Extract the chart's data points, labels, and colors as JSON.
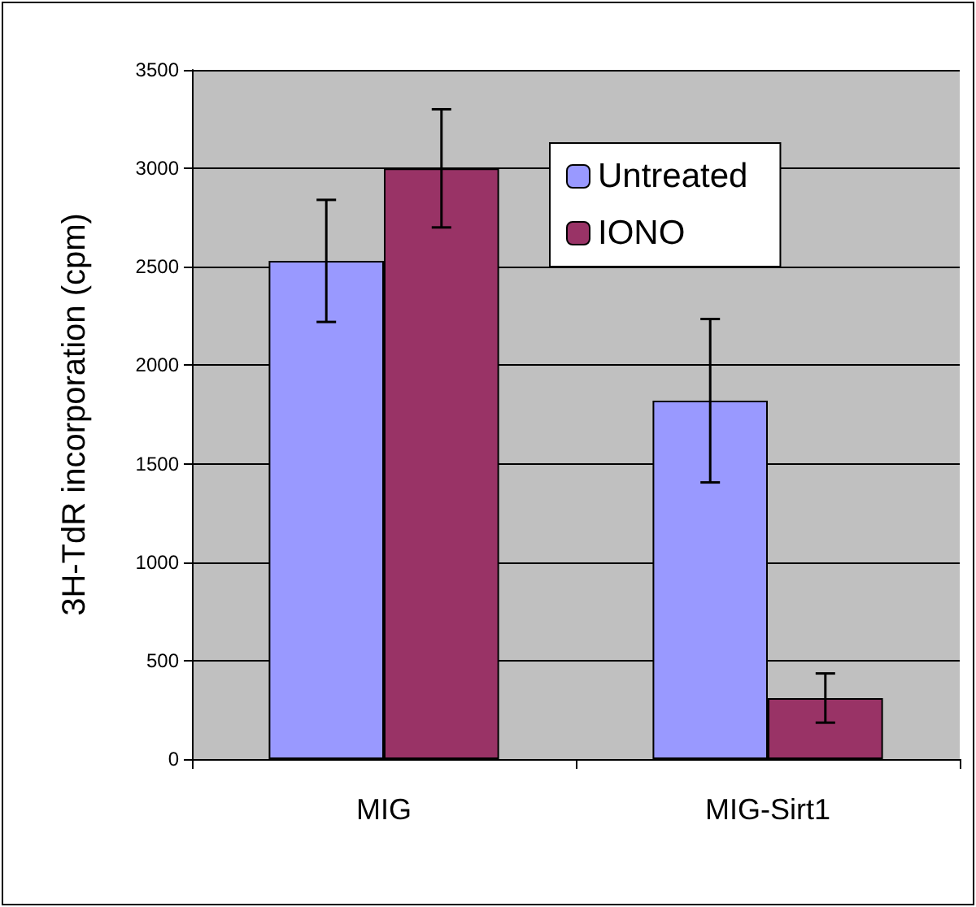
{
  "chart_data": {
    "type": "bar",
    "ylabel": "3H-TdR incorporation (cpm)",
    "categories": [
      "MIG",
      "MIG-Sirt1"
    ],
    "series": [
      {
        "name": "Untreated",
        "color": "#9999ff",
        "values": [
          2530,
          1820
        ],
        "errors": [
          310,
          415
        ]
      },
      {
        "name": "IONO",
        "color": "#993366",
        "values": [
          3000,
          310
        ],
        "errors": [
          300,
          125
        ]
      }
    ],
    "ylim": [
      0,
      3500
    ],
    "yticks": [
      0,
      500,
      1000,
      1500,
      2000,
      2500,
      3000,
      3500
    ],
    "grid": "y",
    "legend": "top right"
  }
}
